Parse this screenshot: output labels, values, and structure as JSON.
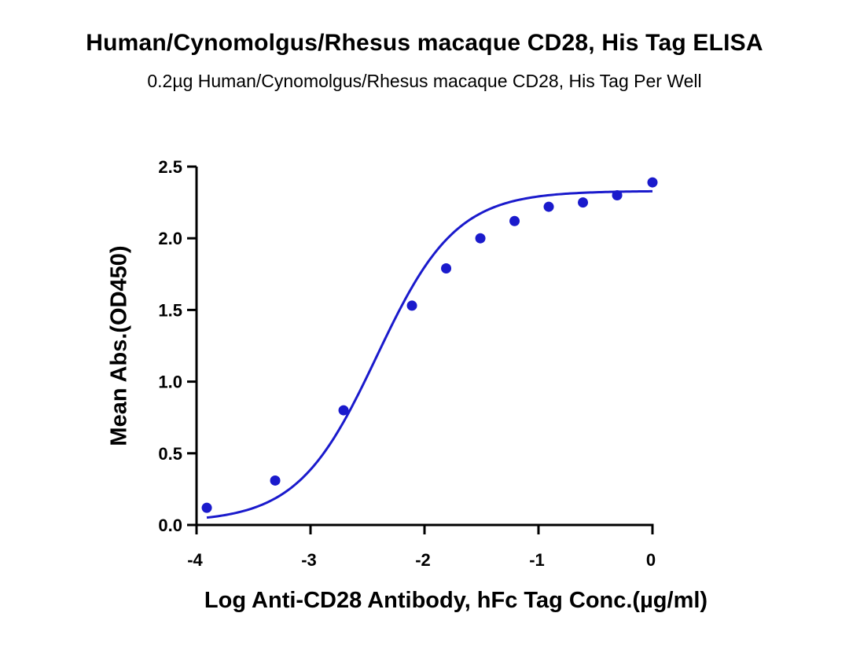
{
  "chart_data": {
    "type": "scatter",
    "title": "Human/Cynomolgus/Rhesus macaque CD28, His Tag ELISA",
    "subtitle": "0.2µg Human/Cynomolgus/Rhesus macaque CD28, His Tag Per Well",
    "xlabel": "Log Anti-CD28 Antibody, hFc Tag Conc.(µg/ml)",
    "ylabel": "Mean Abs.(OD450)",
    "xlim": [
      -4,
      0
    ],
    "ylim": [
      0,
      2.5
    ],
    "xticks": [
      -4,
      -3,
      -2,
      -1,
      0
    ],
    "xtick_labels": [
      "-4",
      "-3",
      "-2",
      "-1",
      "0"
    ],
    "yticks": [
      0,
      0.5,
      1.0,
      1.5,
      2.0,
      2.5
    ],
    "ytick_labels": [
      "0.0",
      "0.5",
      "1.0",
      "1.5",
      "2.0",
      "2.5"
    ],
    "grid": false,
    "color": "#1a1acc",
    "series": [
      {
        "x": [
          -3.91,
          -3.31,
          -2.71,
          -2.11,
          -1.81,
          -1.51,
          -1.21,
          -0.91,
          -0.61,
          -0.31,
          0.0
        ],
        "y": [
          0.12,
          0.31,
          0.8,
          1.53,
          1.79,
          2.0,
          2.12,
          2.22,
          2.25,
          2.3,
          2.39
        ]
      }
    ],
    "fit": {
      "type": "4PL",
      "bottom": 0.02,
      "top": 2.33,
      "log_ec50": -2.42,
      "hill": 1.25
    }
  }
}
